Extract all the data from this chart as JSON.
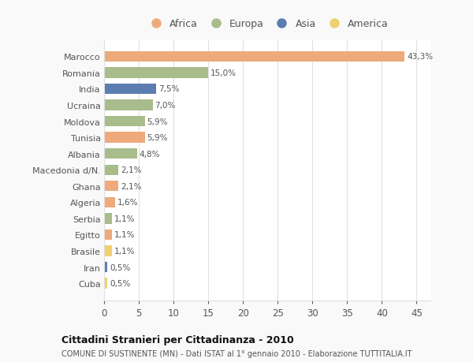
{
  "countries": [
    "Marocco",
    "Romania",
    "India",
    "Ucraina",
    "Moldova",
    "Tunisia",
    "Albania",
    "Macedonia d/N.",
    "Ghana",
    "Algeria",
    "Serbia",
    "Egitto",
    "Brasile",
    "Iran",
    "Cuba"
  ],
  "values": [
    43.3,
    15.0,
    7.5,
    7.0,
    5.9,
    5.9,
    4.8,
    2.1,
    2.1,
    1.6,
    1.1,
    1.1,
    1.1,
    0.5,
    0.5
  ],
  "labels": [
    "43,3%",
    "15,0%",
    "7,5%",
    "7,0%",
    "5,9%",
    "5,9%",
    "4,8%",
    "2,1%",
    "2,1%",
    "1,6%",
    "1,1%",
    "1,1%",
    "1,1%",
    "0,5%",
    "0,5%"
  ],
  "continents": [
    "Africa",
    "Europa",
    "Asia",
    "Europa",
    "Europa",
    "Africa",
    "Europa",
    "Europa",
    "Africa",
    "Africa",
    "Europa",
    "Africa",
    "America",
    "Asia",
    "America"
  ],
  "colors": {
    "Africa": "#EEAA7B",
    "Europa": "#A8BC8C",
    "Asia": "#5B7DB1",
    "America": "#F0D070"
  },
  "title": "Cittadini Stranieri per Cittadinanza - 2010",
  "subtitle": "COMUNE DI SUSTINENTE (MN) - Dati ISTAT al 1° gennaio 2010 - Elaborazione TUTTITALIA.IT",
  "xlim": [
    0,
    47
  ],
  "background_color": "#f9f9f9",
  "plot_bg_color": "#ffffff",
  "grid_color": "#e0e0e0",
  "text_color": "#555555",
  "title_color": "#111111",
  "subtitle_color": "#555555",
  "legend_order": [
    "Africa",
    "Europa",
    "Asia",
    "America"
  ]
}
